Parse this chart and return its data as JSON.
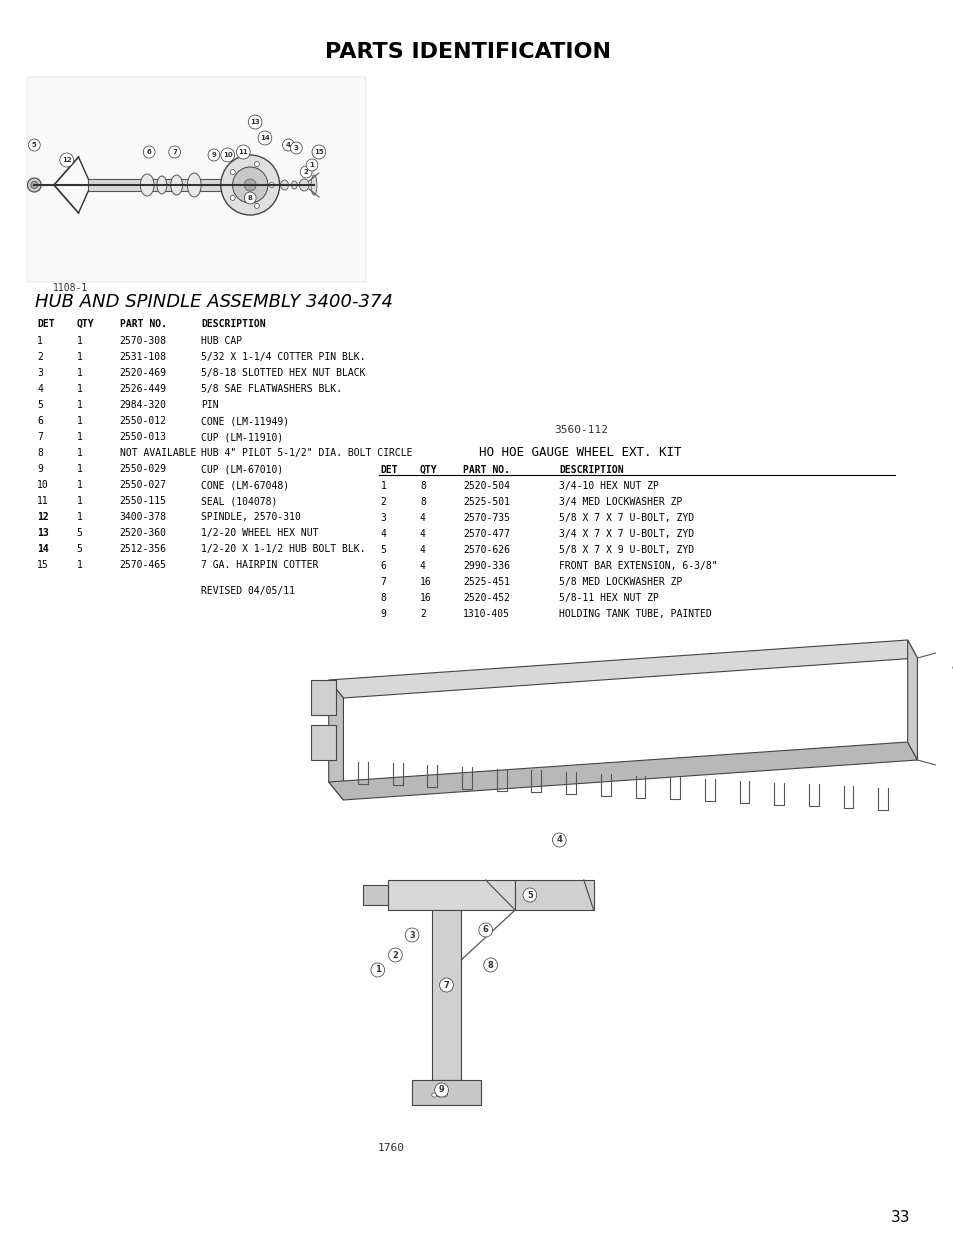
{
  "title": "PARTS IDENTIFICATION",
  "bg_color": "#ffffff",
  "text_color": "#000000",
  "page_number": "33",
  "assembly1_label": "HUB AND SPINDLE ASSEMBLY 3400-374",
  "assembly1_diagram_label": "1108-1",
  "assembly1_revised": "REVISED 04/05/11",
  "assembly1_headers": [
    "DET",
    "QTY",
    "PART NO.",
    "DESCRIPTION"
  ],
  "assembly1_rows": [
    [
      "1",
      "1",
      "2570-308",
      "HUB CAP"
    ],
    [
      "2",
      "1",
      "2531-108",
      "5/32 X 1-1/4 COTTER PIN BLK."
    ],
    [
      "3",
      "1",
      "2520-469",
      "5/8-18 SLOTTED HEX NUT BLACK"
    ],
    [
      "4",
      "1",
      "2526-449",
      "5/8 SAE FLATWASHERS BLK."
    ],
    [
      "5",
      "1",
      "2984-320",
      "PIN"
    ],
    [
      "6",
      "1",
      "2550-012",
      "CONE (LM-11949)"
    ],
    [
      "7",
      "1",
      "2550-013",
      "CUP (LM-11910)"
    ],
    [
      "8",
      "1",
      "NOT AVAILABLE",
      "HUB 4\" PILOT 5-1/2\" DIA. BOLT CIRCLE"
    ],
    [
      "9",
      "1",
      "2550-029",
      "CUP (LM-67010)"
    ],
    [
      "10",
      "1",
      "2550-027",
      "CONE (LM-67048)"
    ],
    [
      "11",
      "1",
      "2550-115",
      "SEAL (104078)"
    ],
    [
      "12",
      "1",
      "3400-378",
      "SPINDLE, 2570-310"
    ],
    [
      "13",
      "5",
      "2520-360",
      "1/2-20 WHEEL HEX NUT"
    ],
    [
      "14",
      "5",
      "2512-356",
      "1/2-20 X 1-1/2 HUB BOLT BLK."
    ],
    [
      "15",
      "1",
      "2570-465",
      "7 GA. HAIRPIN COTTER"
    ]
  ],
  "assembly2_label": "3560-112",
  "assembly2_title": "HO HOE GAUGE WHEEL EXT. KIT",
  "assembly2_diagram_label": "1760",
  "assembly2_headers": [
    "DET",
    "QTY",
    "PART NO.",
    "DESCRIPTION"
  ],
  "assembly2_rows": [
    [
      "1",
      "8",
      "2520-504",
      "3/4-10 HEX NUT ZP"
    ],
    [
      "2",
      "8",
      "2525-501",
      "3/4 MED LOCKWASHER ZP"
    ],
    [
      "3",
      "4",
      "2570-735",
      "5/8 X 7 X 7 U-BOLT, ZYD"
    ],
    [
      "4",
      "4",
      "2570-477",
      "3/4 X 7 X 7 U-BOLT, ZYD"
    ],
    [
      "5",
      "4",
      "2570-626",
      "5/8 X 7 X 9 U-BOLT, ZYD"
    ],
    [
      "6",
      "4",
      "2990-336",
      "FRONT BAR EXTENSION, 6-3/8\""
    ],
    [
      "7",
      "16",
      "2525-451",
      "5/8 MED LOCKWASHER ZP"
    ],
    [
      "8",
      "16",
      "2520-452",
      "5/8-11 HEX NUT ZP"
    ],
    [
      "9",
      "2",
      "1310-405",
      "HOLDING TANK TUBE, PAINTED"
    ]
  ]
}
